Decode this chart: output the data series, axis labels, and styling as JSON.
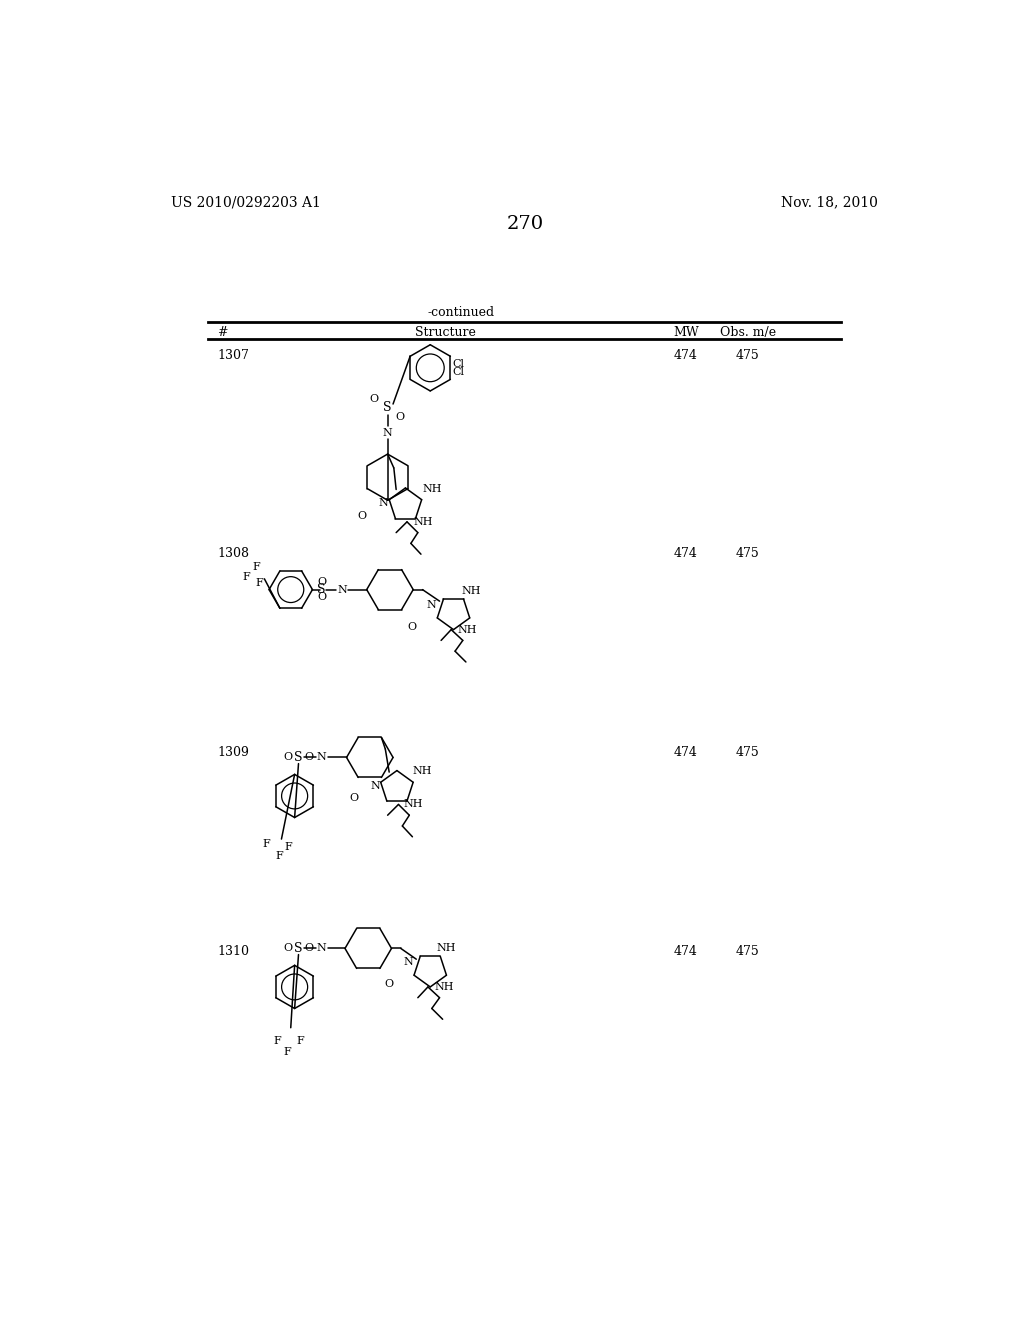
{
  "page_number": "270",
  "patent_number": "US 2010/0292203 A1",
  "patent_date": "Nov. 18, 2010",
  "table_header": "-continued",
  "col_headers": [
    "#",
    "Structure",
    "MW",
    "Obs. m/e"
  ],
  "row_ids": [
    "1307",
    "1308",
    "1309",
    "1310"
  ],
  "mw_vals": [
    "474",
    "474",
    "474",
    "474"
  ],
  "obs_vals": [
    "475",
    "475",
    "475",
    "475"
  ],
  "background_color": "#ffffff"
}
